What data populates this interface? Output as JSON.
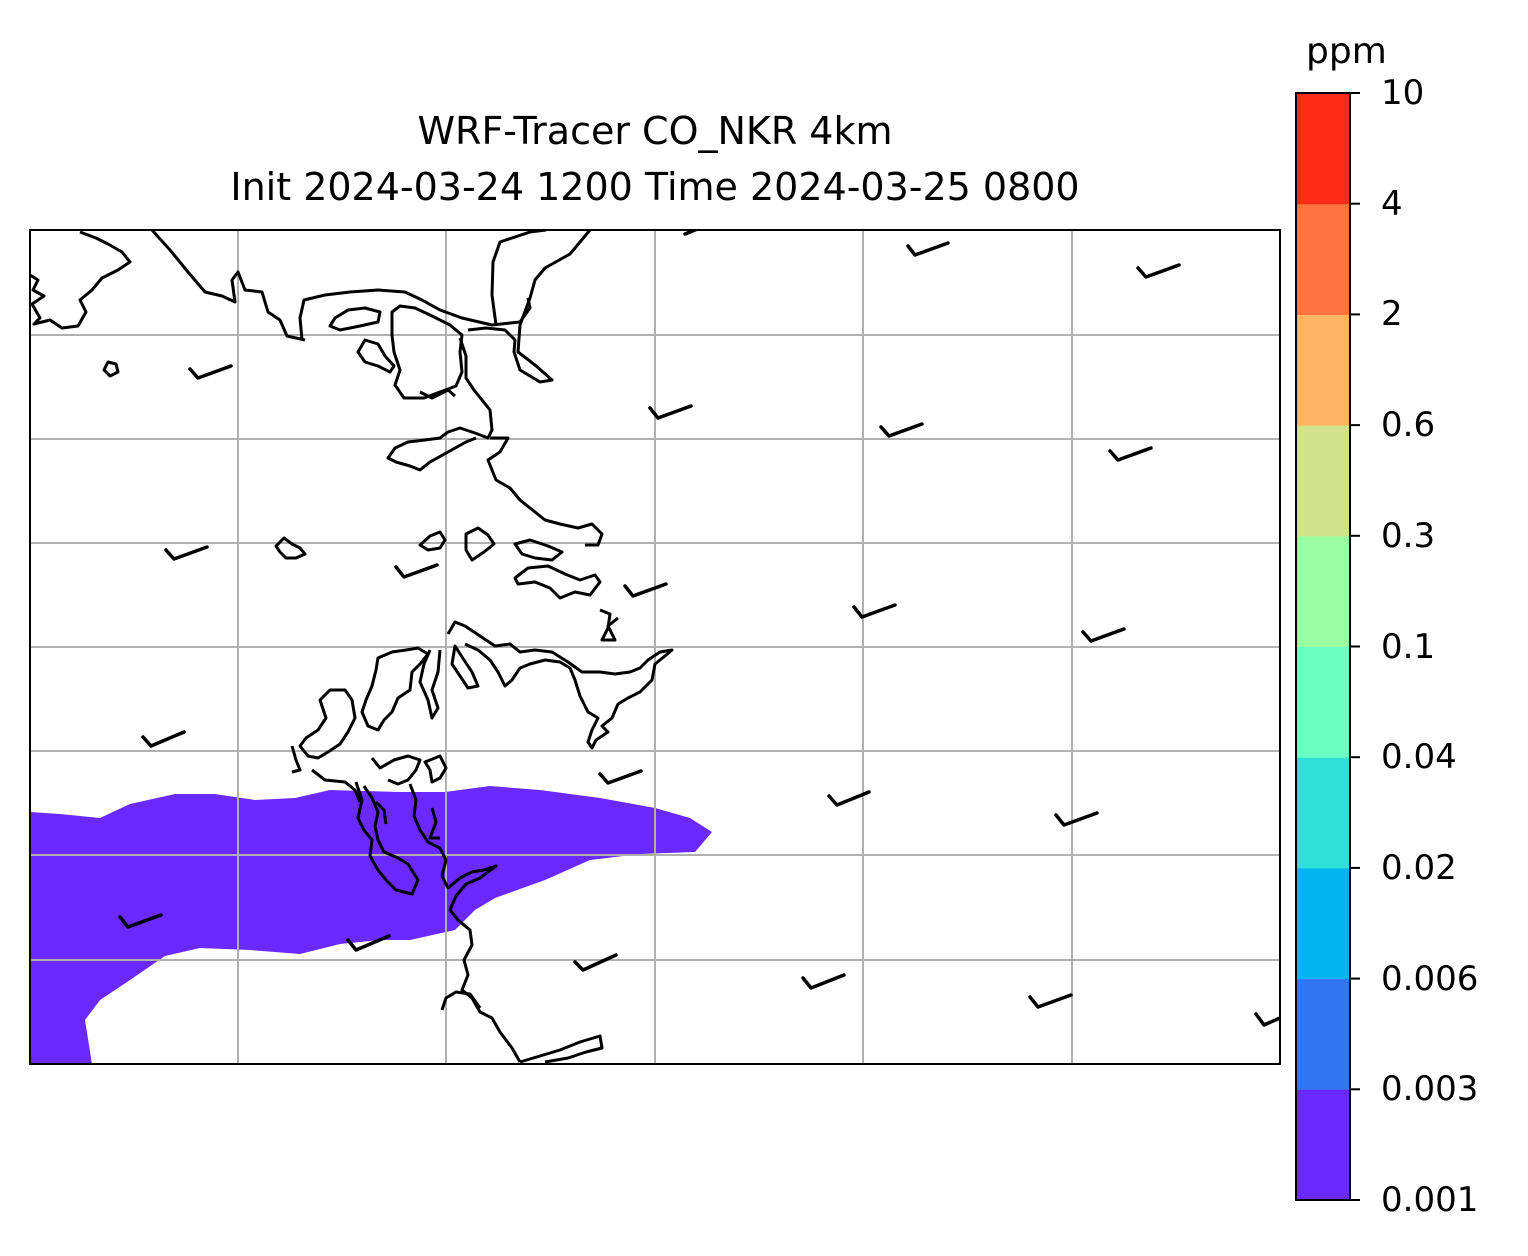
{
  "figure": {
    "title_line_1": "WRF-Tracer CO_NKR 4km",
    "title_line_2": "Init 2024-03-24 1200 Time 2024-03-25 0800"
  },
  "map": {
    "background": "#ffffff",
    "coastline_color": "#000000",
    "gridline_color": "#b0b0b0",
    "plume_color": "#6a2aff",
    "wind_barbs": "calm / light westerly barbs on regular grid",
    "meridian_count": 5,
    "parallel_count": 7
  },
  "colorbar": {
    "units": "ppm",
    "tick_labels": [
      "0.001",
      "0.003",
      "0.006",
      "0.02",
      "0.04",
      "0.1",
      "0.3",
      "0.6",
      "2",
      "4",
      "10"
    ],
    "colors": [
      "#6a2aff",
      "#3374f2",
      "#00b5ef",
      "#2fe0d6",
      "#6bffc2",
      "#9cffa3",
      "#d0e38a",
      "#feb466",
      "#ff7442",
      "#ff2a17"
    ]
  }
}
